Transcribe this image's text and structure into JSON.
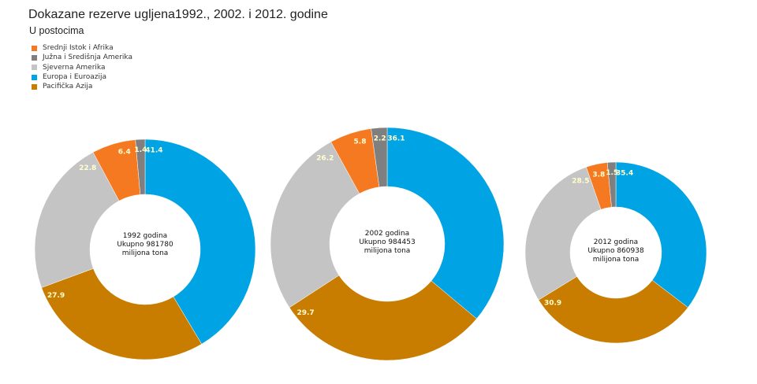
{
  "chart_data": {
    "type": "pie",
    "title": "Dokazane rezerve ugljena1992., 2002. i 2012. godine",
    "subtitle": "U postocima",
    "legend": [
      {
        "name": "Srednji Istok i Afrika",
        "color": "#f47920"
      },
      {
        "name": "Južna i Središnja Amerika",
        "color": "#7f7f7f"
      },
      {
        "name": "Sjeverna Amerika",
        "color": "#c4c4c4"
      },
      {
        "name": "Europa i Euroazija",
        "color": "#00a4e4"
      },
      {
        "name": "Pacifička Azija",
        "color": "#c97d00"
      }
    ],
    "order": [
      "Europa i Euroazija",
      "Pacifička Azija",
      "Sjeverna Amerika",
      "Srednji Istok i Afrika",
      "Južna i Središnja Amerika"
    ],
    "charts": [
      {
        "center_lines": [
          "1992 godina",
          "Ukupno 981780",
          "milijona tona"
        ],
        "values": [
          41.4,
          27.9,
          22.8,
          6.4,
          1.4
        ]
      },
      {
        "center_lines": [
          "2002 godina",
          "Ukupno 984453",
          "milijona tona"
        ],
        "values": [
          36.1,
          29.7,
          26.2,
          5.8,
          2.2
        ]
      },
      {
        "center_lines": [
          "2012 godina",
          "Ukupno 860938",
          "milijona tona"
        ],
        "values": [
          35.4,
          30.9,
          28.5,
          3.8,
          1.5
        ]
      }
    ]
  }
}
